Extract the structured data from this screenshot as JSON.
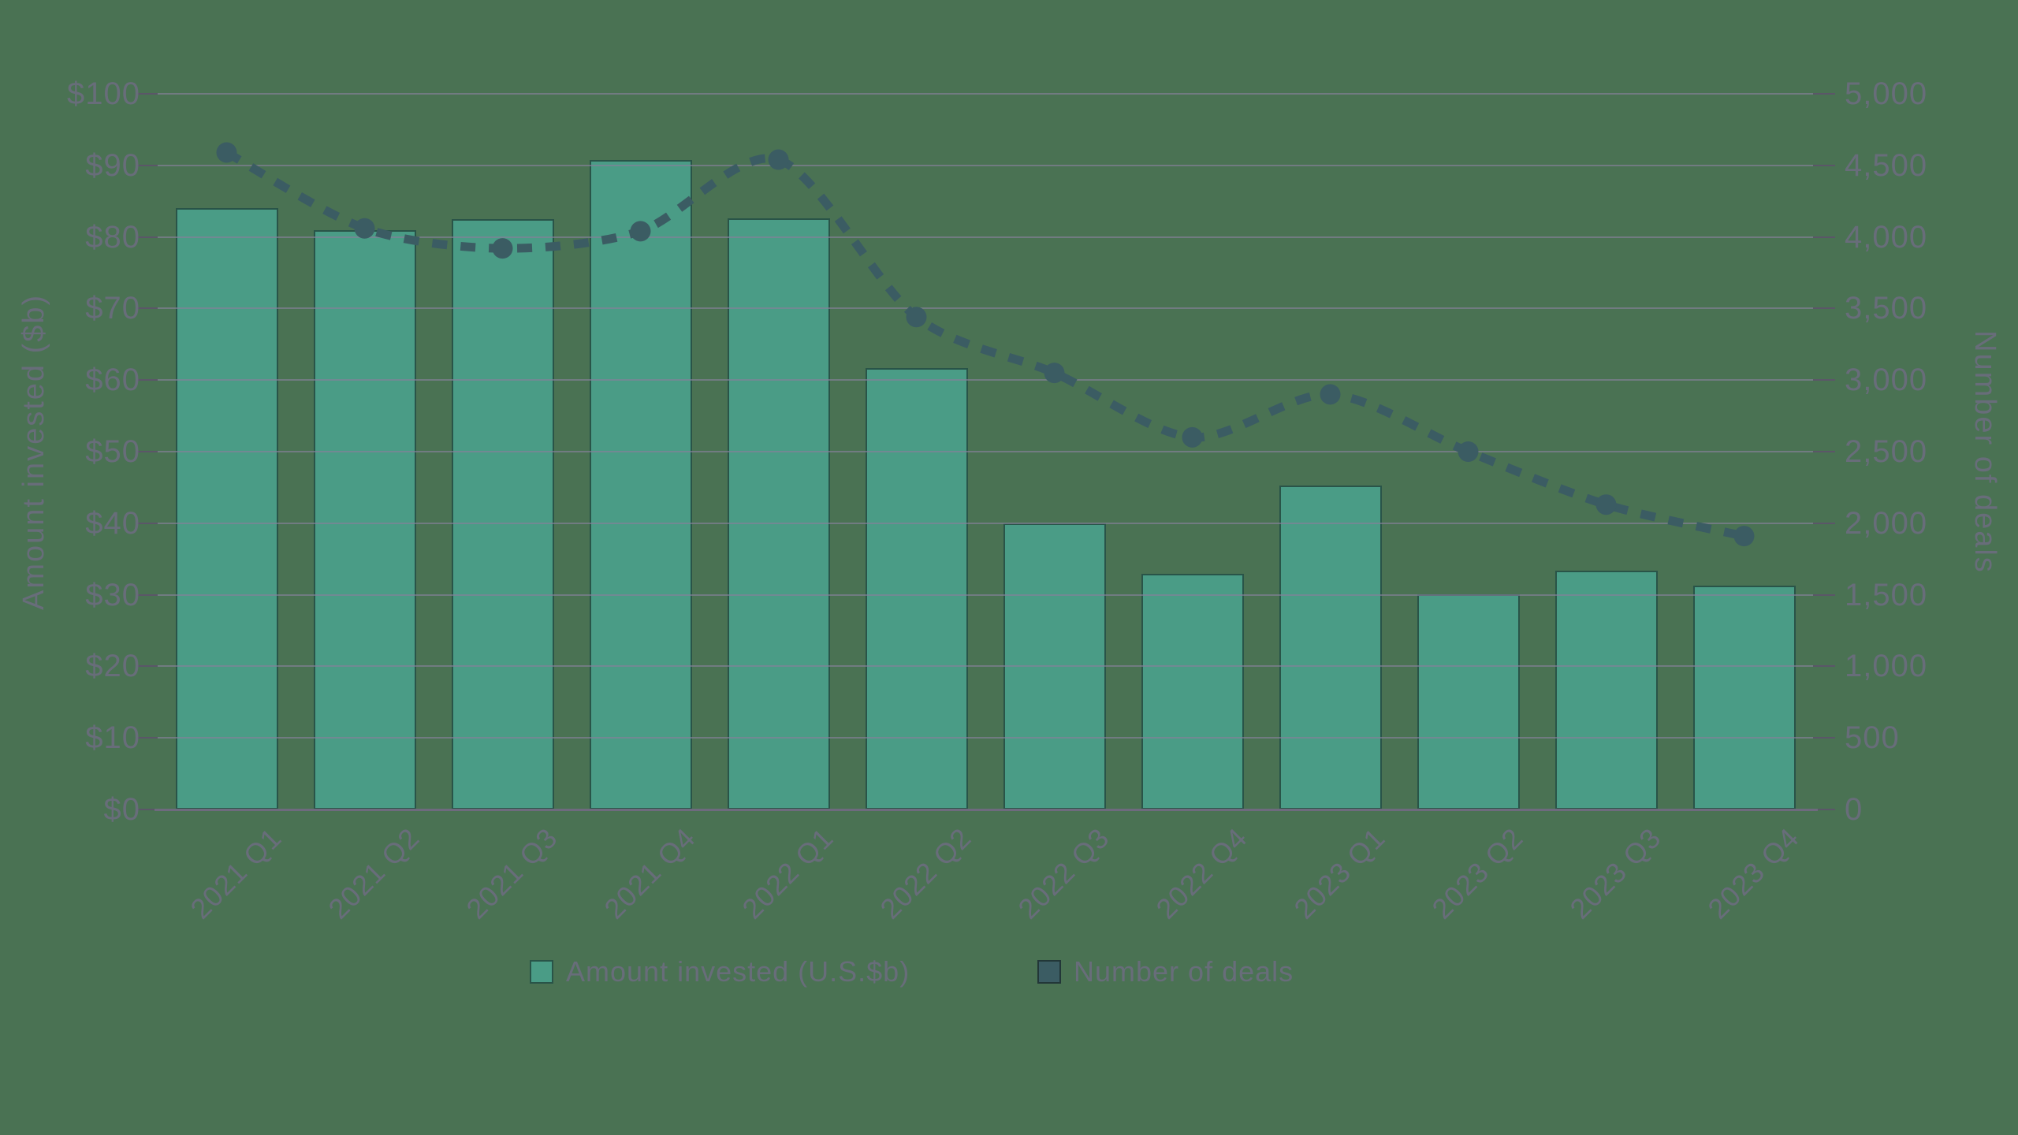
{
  "chart_data": {
    "type": "bar",
    "subtype": "combo-bar-dotted-line",
    "categories": [
      "2021 Q1",
      "2021 Q2",
      "2021 Q3",
      "2021 Q4",
      "2022 Q1",
      "2022 Q2",
      "2022 Q3",
      "2022 Q4",
      "2023 Q1",
      "2023 Q2",
      "2023 Q3",
      "2023 Q4"
    ],
    "series": [
      {
        "name": "Amount invested (U.S.$b)",
        "type": "bar",
        "axis": "left",
        "color": "#4a9c86",
        "values": [
          84.0,
          80.9,
          82.5,
          90.8,
          82.6,
          61.7,
          40.0,
          32.9,
          45.3,
          30.1,
          33.4,
          31.3
        ]
      },
      {
        "name": "Number of deals",
        "type": "line",
        "style": "dotted",
        "axis": "right",
        "color": "#3b5c63",
        "values": [
          4590,
          4060,
          3920,
          4040,
          4540,
          3440,
          3050,
          2600,
          2900,
          2500,
          2130,
          1910
        ]
      }
    ],
    "left_axis": {
      "label": "Amount invested ($b)",
      "min": 0,
      "max": 100,
      "step": 10,
      "tick_labels": [
        "$0",
        "$10",
        "$20",
        "$30",
        "$40",
        "$50",
        "$60",
        "$70",
        "$80",
        "$90",
        "$100"
      ]
    },
    "right_axis": {
      "label": "Number of deals",
      "min": 0,
      "max": 5000,
      "step": 500,
      "tick_labels": [
        "0",
        "500",
        "1,000",
        "1,500",
        "2,000",
        "2,500",
        "3,000",
        "3,500",
        "4,000",
        "4,500",
        "5,000"
      ]
    },
    "grid": true,
    "legend_position": "bottom",
    "legend": [
      {
        "label": "Amount invested (U.S.$b)",
        "swatch": "#4a9c86"
      },
      {
        "label": "Number of deals",
        "swatch": "#3b5c63"
      }
    ]
  },
  "colors": {
    "background": "#4a7253",
    "bar": "#4a9c86",
    "line": "#3b5c63",
    "gridline": "#86809a",
    "axis_line": "#6e6a7e",
    "tick": "#5b5668",
    "text": "#686d7a"
  }
}
